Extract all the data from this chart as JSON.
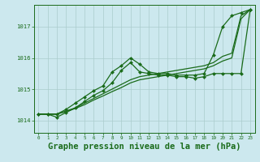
{
  "background_color": "#cce8ee",
  "grid_color": "#aacccc",
  "line_color": "#1a6b1a",
  "marker_color": "#1a6b1a",
  "xlabel": "Graphe pression niveau de la mer (hPa)",
  "xlabel_fontsize": 7.5,
  "ylabel_ticks": [
    1014,
    1015,
    1016,
    1017
  ],
  "xlim": [
    -0.5,
    23.5
  ],
  "ylim": [
    1013.6,
    1017.7
  ],
  "xticks": [
    0,
    1,
    2,
    3,
    4,
    5,
    6,
    7,
    8,
    9,
    10,
    11,
    12,
    13,
    14,
    15,
    16,
    17,
    18,
    19,
    20,
    21,
    22,
    23
  ],
  "series": [
    {
      "x": [
        0,
        1,
        2,
        3,
        4,
        5,
        6,
        7,
        8,
        9,
        10,
        11,
        12,
        13,
        14,
        15,
        16,
        17,
        18,
        19,
        20,
        21,
        22,
        23
      ],
      "y": [
        1014.2,
        1014.2,
        1014.2,
        1014.35,
        1014.55,
        1014.75,
        1014.95,
        1015.1,
        1015.55,
        1015.75,
        1016.0,
        1015.8,
        1015.55,
        1015.5,
        1015.5,
        1015.45,
        1015.45,
        1015.45,
        1015.5,
        1016.1,
        1017.0,
        1017.35,
        1017.45,
        1017.55
      ],
      "marker": "D",
      "markersize": 2.0,
      "linewidth": 0.9
    },
    {
      "x": [
        0,
        1,
        2,
        3,
        4,
        5,
        6,
        7,
        8,
        9,
        10,
        11,
        12,
        13,
        14,
        15,
        16,
        17,
        18,
        19,
        20,
        21,
        22,
        23
      ],
      "y": [
        1014.2,
        1014.2,
        1014.1,
        1014.25,
        1014.4,
        1014.6,
        1014.8,
        1014.95,
        1015.2,
        1015.6,
        1015.85,
        1015.55,
        1015.5,
        1015.45,
        1015.45,
        1015.4,
        1015.4,
        1015.35,
        1015.4,
        1015.5,
        1015.5,
        1015.5,
        1015.5,
        1017.55
      ],
      "marker": "D",
      "markersize": 2.0,
      "linewidth": 0.9
    },
    {
      "x": [
        0,
        1,
        2,
        3,
        4,
        5,
        6,
        7,
        8,
        9,
        10,
        11,
        12,
        13,
        14,
        15,
        16,
        17,
        18,
        19,
        20,
        21,
        22,
        23
      ],
      "y": [
        1014.2,
        1014.2,
        1014.2,
        1014.3,
        1014.4,
        1014.55,
        1014.7,
        1014.85,
        1015.0,
        1015.15,
        1015.3,
        1015.4,
        1015.45,
        1015.5,
        1015.55,
        1015.6,
        1015.65,
        1015.7,
        1015.75,
        1015.85,
        1016.05,
        1016.15,
        1017.35,
        1017.55
      ],
      "marker": null,
      "markersize": 0,
      "linewidth": 0.9
    },
    {
      "x": [
        0,
        1,
        2,
        3,
        4,
        5,
        6,
        7,
        8,
        9,
        10,
        11,
        12,
        13,
        14,
        15,
        16,
        17,
        18,
        19,
        20,
        21,
        22,
        23
      ],
      "y": [
        1014.2,
        1014.2,
        1014.2,
        1014.28,
        1014.38,
        1014.5,
        1014.65,
        1014.78,
        1014.92,
        1015.05,
        1015.2,
        1015.3,
        1015.35,
        1015.4,
        1015.45,
        1015.5,
        1015.55,
        1015.6,
        1015.65,
        1015.75,
        1015.9,
        1016.0,
        1017.25,
        1017.55
      ],
      "marker": null,
      "markersize": 0,
      "linewidth": 0.9
    }
  ]
}
